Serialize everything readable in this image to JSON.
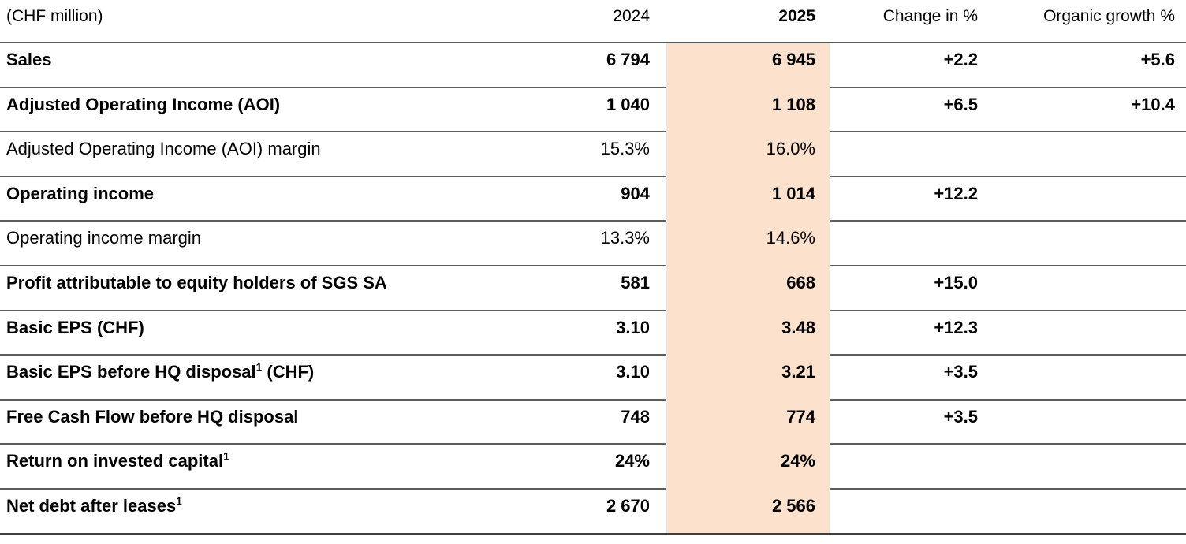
{
  "table": {
    "unit_label": "(CHF million)",
    "columns": {
      "prior_year": "2024",
      "current_year": "2025",
      "change": "Change in %",
      "organic": "Organic growth %"
    },
    "highlight_color": "#fce1cc",
    "rows": [
      {
        "label": "Sales",
        "sup": "",
        "label_suffix": "",
        "y2024": "6 794",
        "y2025": "6 945",
        "change": "+2.2",
        "organic": "+5.6"
      },
      {
        "label": "Adjusted Operating Income (AOI)",
        "sup": "",
        "label_suffix": "",
        "y2024": "1 040",
        "y2025": "1 108",
        "change": "+6.5",
        "organic": "+10.4"
      },
      {
        "label": "Adjusted Operating Income (AOI) margin",
        "sup": "",
        "label_suffix": "",
        "y2024": "15.3%",
        "y2025": "16.0%",
        "change": "",
        "organic": ""
      },
      {
        "label": "Operating income",
        "sup": "",
        "label_suffix": "",
        "y2024": "904",
        "y2025": "1 014",
        "change": "+12.2",
        "organic": ""
      },
      {
        "label": "Operating income margin",
        "sup": "",
        "label_suffix": "",
        "y2024": "13.3%",
        "y2025": "14.6%",
        "change": "",
        "organic": ""
      },
      {
        "label": "Profit attributable to equity holders of SGS SA",
        "sup": "",
        "label_suffix": "",
        "y2024": "581",
        "y2025": "668",
        "change": "+15.0",
        "organic": ""
      },
      {
        "label": "Basic EPS (CHF)",
        "sup": "",
        "label_suffix": "",
        "y2024": "3.10",
        "y2025": "3.48",
        "change": "+12.3",
        "organic": ""
      },
      {
        "label": "Basic EPS before HQ disposal",
        "sup": "1",
        "label_suffix": " (CHF)",
        "y2024": "3.10",
        "y2025": "3.21",
        "change": "+3.5",
        "organic": ""
      },
      {
        "label": "Free Cash Flow before HQ disposal",
        "sup": "",
        "label_suffix": "",
        "y2024": "748",
        "y2025": "774",
        "change": "+3.5",
        "organic": ""
      },
      {
        "label": "Return on invested capital",
        "sup": "1",
        "label_suffix": "",
        "y2024": "24%",
        "y2025": "24%",
        "change": "",
        "organic": ""
      },
      {
        "label": "Net debt after leases",
        "sup": "1",
        "label_suffix": "",
        "y2024": "2 670",
        "y2025": "2 566",
        "change": "",
        "organic": ""
      }
    ]
  }
}
